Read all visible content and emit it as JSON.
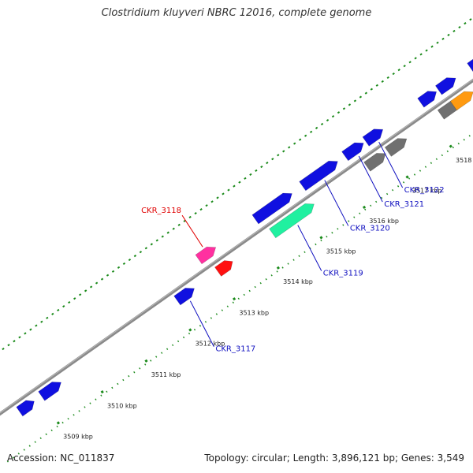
{
  "title": "Clostridium kluyveri NBRC 12016, complete genome",
  "footer": {
    "accession": "Accession: NC_011837",
    "summary": "Topology: circular; Length: 3,896,121 bp; Genes: 3,549"
  },
  "colors": {
    "backbone": "#8a8a8a",
    "tick_outer": "#1a8a1a",
    "gene_default": "#1010e0",
    "gene_rna": "#20f0a0",
    "gene_pseudo": "#707070",
    "gene_orange": "#ff9a10",
    "gene_pink": "#ff30a0",
    "gene_red": "#ff1010",
    "label_blue": "#1010c0",
    "label_red": "#e00000"
  },
  "ticks": [
    {
      "label": "3509 kbp",
      "pos": 0.085
    },
    {
      "label": "3510 kbp",
      "pos": 0.175
    },
    {
      "label": "3511 kbp",
      "pos": 0.265
    },
    {
      "label": "3512 kbp",
      "pos": 0.355
    },
    {
      "label": "3513 kbp",
      "pos": 0.445
    },
    {
      "label": "3514 kbp",
      "pos": 0.535
    },
    {
      "label": "3515 kbp",
      "pos": 0.623
    },
    {
      "label": "3516 kbp",
      "pos": 0.711
    },
    {
      "label": "3517 kbp",
      "pos": 0.799
    },
    {
      "label": "3518 kbp",
      "pos": 0.888
    }
  ],
  "genes": [
    {
      "id": "g1",
      "pos": 0.06,
      "len": 0.03,
      "lane": "in",
      "color": "gene_default",
      "dir": 1
    },
    {
      "id": "g2",
      "pos": 0.11,
      "len": 0.04,
      "lane": "in",
      "color": "gene_default",
      "dir": 1
    },
    {
      "id": "g-3117",
      "pos": 0.385,
      "len": 0.035,
      "lane": "in",
      "color": "gene_default",
      "dir": 1
    },
    {
      "id": "g-3118a",
      "pos": 0.454,
      "len": 0.035,
      "lane": "out",
      "color": "gene_pink",
      "dir": 1
    },
    {
      "id": "g-3118b",
      "pos": 0.466,
      "len": 0.03,
      "lane": "in",
      "color": "gene_red",
      "dir": 1
    },
    {
      "id": "g-3119-blue",
      "pos": 0.59,
      "len": 0.075,
      "lane": "out",
      "color": "gene_default",
      "dir": 1
    },
    {
      "id": "g-3119",
      "pos": 0.605,
      "len": 0.085,
      "lane": "in",
      "color": "gene_rna",
      "dir": 1
    },
    {
      "id": "g-3120",
      "pos": 0.685,
      "len": 0.072,
      "lane": "out",
      "color": "gene_default",
      "dir": 1
    },
    {
      "id": "g-3121",
      "pos": 0.755,
      "len": 0.038,
      "lane": "out",
      "color": "gene_default",
      "dir": 1
    },
    {
      "id": "g-3121-grey",
      "pos": 0.775,
      "len": 0.038,
      "lane": "in",
      "color": "gene_pseudo",
      "dir": 1
    },
    {
      "id": "g-3122",
      "pos": 0.796,
      "len": 0.035,
      "lane": "out",
      "color": "gene_default",
      "dir": 1
    },
    {
      "id": "g-3122-grey",
      "pos": 0.818,
      "len": 0.038,
      "lane": "in",
      "color": "gene_pseudo",
      "dir": 1
    },
    {
      "id": "g-r1",
      "pos": 0.907,
      "len": 0.032,
      "lane": "out",
      "color": "gene_default",
      "dir": 1
    },
    {
      "id": "g-r2",
      "pos": 0.927,
      "len": 0.04,
      "lane": "in",
      "color": "gene_pseudo",
      "dir": 1
    },
    {
      "id": "g-r3",
      "pos": 0.945,
      "len": 0.035,
      "lane": "out",
      "color": "gene_default",
      "dir": 1
    },
    {
      "id": "g-r4",
      "pos": 0.953,
      "len": 0.04,
      "lane": "in",
      "color": "gene_orange",
      "dir": 1
    },
    {
      "id": "g-r5",
      "pos": 1.01,
      "len": 0.035,
      "lane": "out",
      "color": "gene_default",
      "dir": 1
    },
    {
      "id": "g-r6",
      "pos": 1.025,
      "len": 0.035,
      "lane": "in",
      "color": "gene_rna",
      "dir": 1
    }
  ],
  "labels": [
    {
      "text": "CKR_3117",
      "color": "label_blue",
      "anchor_gene": "g-3117",
      "side": "below"
    },
    {
      "text": "CKR_3118",
      "color": "label_red",
      "anchor_gene": "g-3118a",
      "side": "above"
    },
    {
      "text": "CKR_3119",
      "color": "label_blue",
      "anchor_gene": "g-3119",
      "side": "below"
    },
    {
      "text": "CKR_3120",
      "color": "label_blue",
      "anchor_gene": "g-3120",
      "side": "below"
    },
    {
      "text": "CKR_3121",
      "color": "label_blue",
      "anchor_gene": "g-3121",
      "side": "below"
    },
    {
      "text": "CKR_3122",
      "color": "label_blue",
      "anchor_gene": "g-3122",
      "side": "below"
    }
  ]
}
